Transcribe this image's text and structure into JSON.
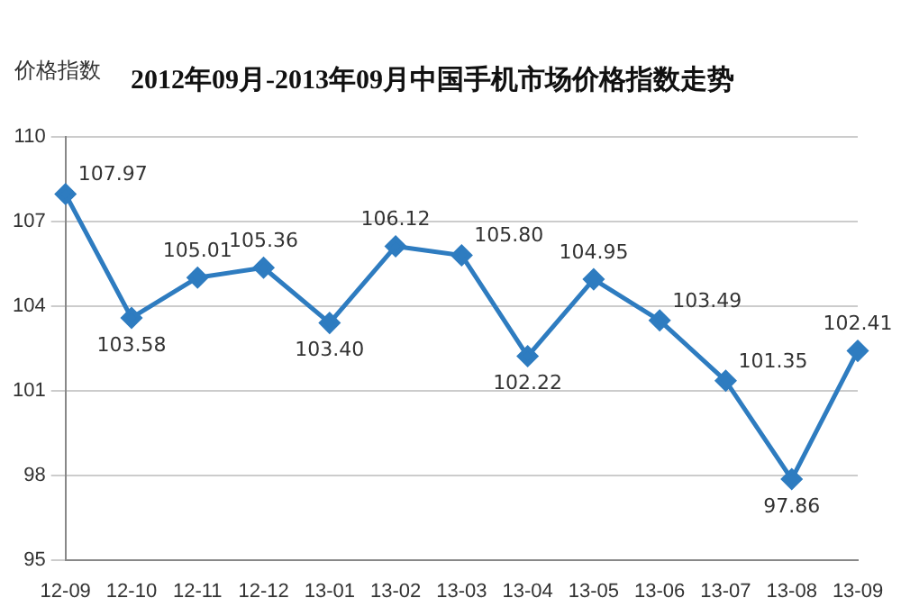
{
  "chart_data": {
    "type": "line",
    "title": "2012年09月-2013年09月中国手机市场价格指数走势",
    "ylabel": "价格指数",
    "categories": [
      "12-09",
      "12-10",
      "12-11",
      "12-12",
      "13-01",
      "13-02",
      "13-03",
      "13-04",
      "13-05",
      "13-06",
      "13-07",
      "13-08",
      "13-09"
    ],
    "series": [
      {
        "color": "#2e7cc0",
        "values": [
          107.97,
          103.58,
          105.01,
          105.36,
          103.4,
          106.12,
          105.8,
          102.22,
          104.95,
          103.49,
          101.35,
          97.86,
          102.41
        ]
      }
    ],
    "value_labels": [
      "107.97",
      "103.58",
      "105.01",
      "105.36",
      "103.40",
      "106.12",
      "105.80",
      "102.22",
      "104.95",
      "103.49",
      "101.35",
      "97.86",
      "102.41"
    ],
    "ylim": [
      95,
      110
    ],
    "yticks": [
      95,
      98,
      101,
      104,
      107,
      110
    ],
    "grid": "y",
    "marker": "diamond",
    "line_style": "solid",
    "legend": false
  }
}
